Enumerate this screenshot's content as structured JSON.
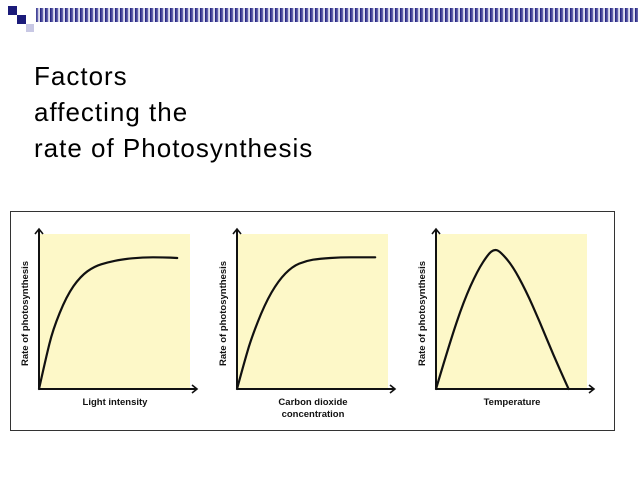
{
  "slide": {
    "title_lines": [
      "Factors",
      "affecting the",
      "rate of Photosynthesis"
    ]
  },
  "colors": {
    "panel_fill": "#fdf8c8",
    "curve": "#111111",
    "header_bar_dark": "#1b1b7a",
    "header_bar_light": "#c8c8e4",
    "header_squares": "#1b1b7a"
  },
  "chart_data": [
    {
      "type": "line",
      "title": "",
      "xlabel": "Light intensity",
      "ylabel": "Rate of photosynthesis",
      "series": [
        {
          "values": [
            [
              0,
              0
            ],
            [
              0.05,
              0.22
            ],
            [
              0.1,
              0.42
            ],
            [
              0.2,
              0.66
            ],
            [
              0.3,
              0.8
            ],
            [
              0.4,
              0.87
            ],
            [
              0.5,
              0.9
            ],
            [
              0.6,
              0.92
            ],
            [
              0.75,
              0.935
            ],
            [
              0.9,
              0.935
            ],
            [
              1.0,
              0.93
            ]
          ]
        }
      ],
      "xlim": [
        0,
        1.1
      ],
      "ylim": [
        0,
        1.1
      ],
      "grid": false
    },
    {
      "type": "line",
      "title": "",
      "xlabel": "Carbon dioxide concentration",
      "ylabel": "Rate of photosynthesis",
      "series": [
        {
          "values": [
            [
              0,
              0
            ],
            [
              0.05,
              0.18
            ],
            [
              0.1,
              0.35
            ],
            [
              0.2,
              0.6
            ],
            [
              0.3,
              0.77
            ],
            [
              0.4,
              0.87
            ],
            [
              0.5,
              0.91
            ],
            [
              0.6,
              0.925
            ],
            [
              0.75,
              0.935
            ],
            [
              0.9,
              0.935
            ],
            [
              1.0,
              0.935
            ]
          ]
        }
      ],
      "xlim": [
        0,
        1.1
      ],
      "ylim": [
        0,
        1.1
      ],
      "grid": false
    },
    {
      "type": "line",
      "title": "",
      "xlabel": "Temperature",
      "ylabel": "Rate of photosynthesis",
      "series": [
        {
          "values": [
            [
              0,
              0
            ],
            [
              0.1,
              0.33
            ],
            [
              0.2,
              0.62
            ],
            [
              0.3,
              0.84
            ],
            [
              0.38,
              0.96
            ],
            [
              0.42,
              0.99
            ],
            [
              0.46,
              0.98
            ],
            [
              0.55,
              0.88
            ],
            [
              0.65,
              0.7
            ],
            [
              0.75,
              0.48
            ],
            [
              0.85,
              0.24
            ],
            [
              0.95,
              0.02
            ],
            [
              0.96,
              0
            ]
          ]
        }
      ],
      "xlim": [
        0,
        1.1
      ],
      "ylim": [
        0,
        1.1
      ],
      "grid": false
    }
  ]
}
